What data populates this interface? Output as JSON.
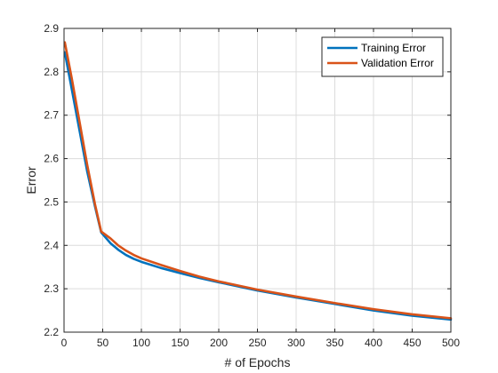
{
  "chart_data": {
    "type": "line",
    "title": "",
    "xlabel": "# of Epochs",
    "ylabel": "Error",
    "xlim": [
      0,
      500
    ],
    "ylim": [
      2.2,
      2.9
    ],
    "x_ticks": [
      0,
      50,
      100,
      150,
      200,
      250,
      300,
      350,
      400,
      450,
      500
    ],
    "x_tick_labels": [
      "0",
      "50",
      "100",
      "150",
      "200",
      "250",
      "300",
      "350",
      "400",
      "450",
      "500"
    ],
    "y_ticks": [
      2.2,
      2.3,
      2.4,
      2.5,
      2.6,
      2.7,
      2.8,
      2.9
    ],
    "y_tick_labels": [
      "2.2",
      "2.3",
      "2.4",
      "2.5",
      "2.6",
      "2.7",
      "2.8",
      "2.9"
    ],
    "grid": true,
    "legend_position": "top-right",
    "series": [
      {
        "name": "Training Error",
        "color": "#0072BD",
        "x": [
          1,
          10,
          20,
          30,
          40,
          48,
          60,
          70,
          80,
          90,
          100,
          125,
          150,
          175,
          200,
          250,
          300,
          350,
          400,
          450,
          500
        ],
        "y": [
          2.845,
          2.76,
          2.665,
          2.57,
          2.49,
          2.43,
          2.405,
          2.39,
          2.378,
          2.369,
          2.362,
          2.348,
          2.336,
          2.325,
          2.315,
          2.296,
          2.28,
          2.265,
          2.25,
          2.238,
          2.229
        ]
      },
      {
        "name": "Validation Error",
        "color": "#D95319",
        "x": [
          1,
          10,
          20,
          30,
          40,
          48,
          60,
          70,
          80,
          90,
          100,
          125,
          150,
          175,
          200,
          250,
          300,
          350,
          400,
          450,
          500
        ],
        "y": [
          2.868,
          2.785,
          2.685,
          2.585,
          2.495,
          2.432,
          2.416,
          2.4,
          2.388,
          2.378,
          2.37,
          2.355,
          2.341,
          2.328,
          2.317,
          2.298,
          2.282,
          2.267,
          2.253,
          2.241,
          2.232
        ]
      }
    ]
  }
}
